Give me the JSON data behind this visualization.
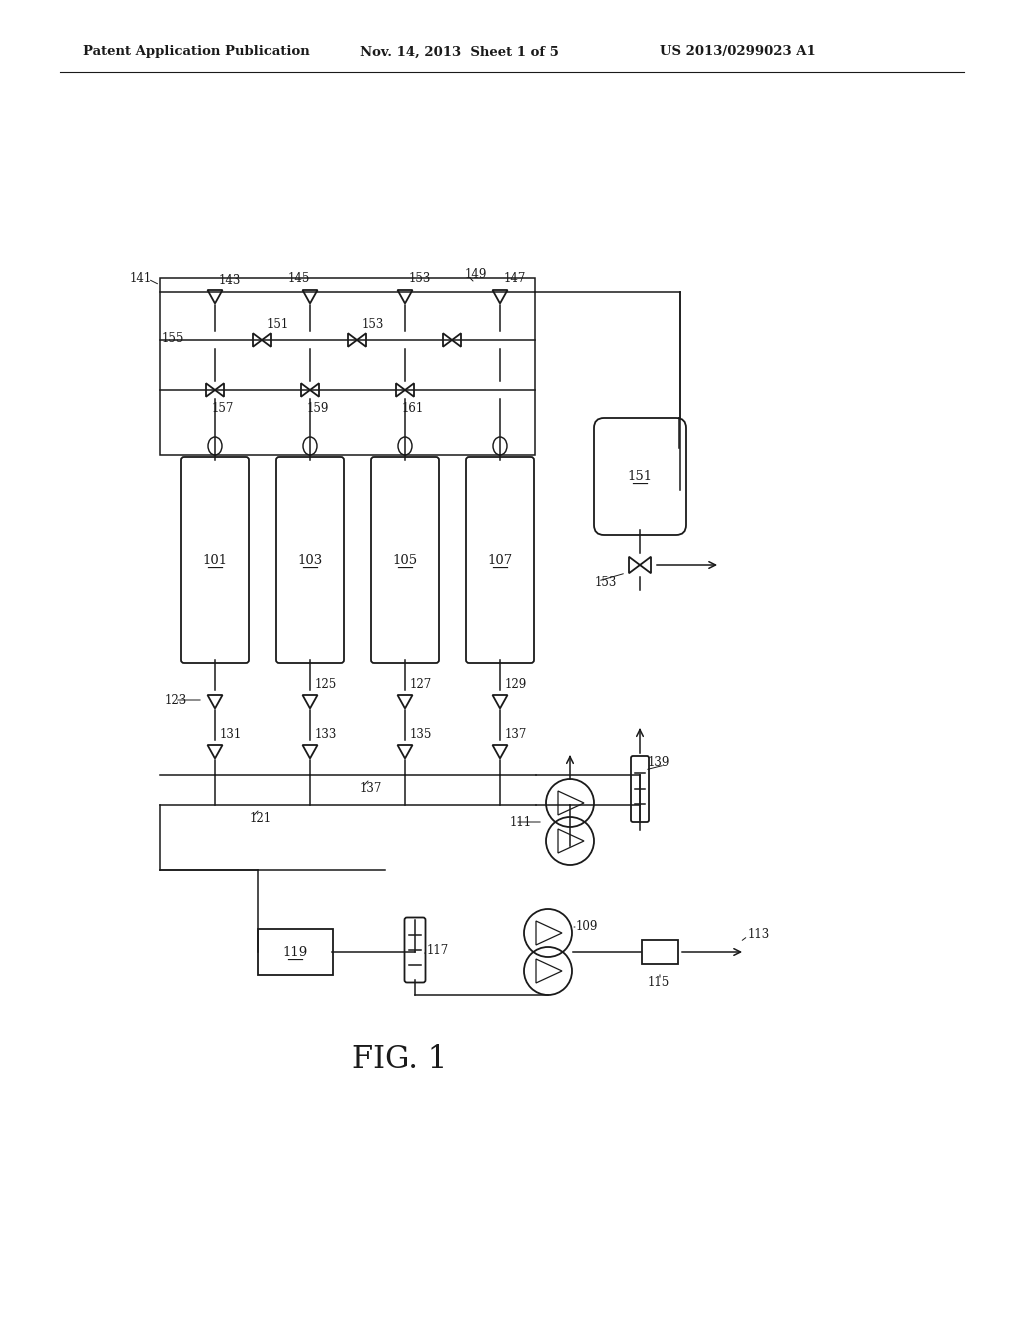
{
  "bg_color": "#ffffff",
  "line_color": "#1a1a1a",
  "header_left": "Patent Application Publication",
  "header_mid": "Nov. 14, 2013  Sheet 1 of 5",
  "header_right": "US 2013/0299023 A1",
  "fig_label": "FIG. 1",
  "header_fontsize": 9.5,
  "label_fontsize": 8.5,
  "fig_label_fontsize": 22
}
